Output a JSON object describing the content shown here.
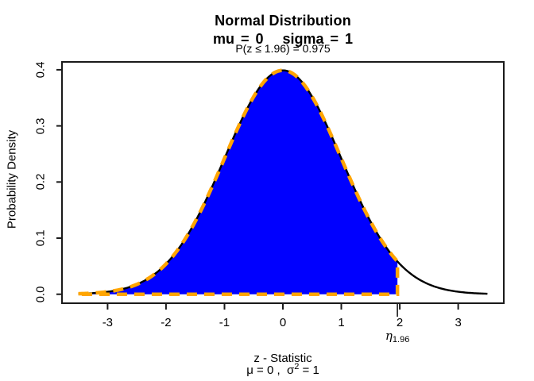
{
  "chart_data": {
    "type": "area",
    "title": "Normal Distribution",
    "subtitle": "mu = 0   sigma = 1",
    "annotation": "P(z ≤ 1.96) = 0.975",
    "xlabel": "z - Statistic",
    "xlabel2": {
      "pre": "μ = 0 ,  σ",
      "sup": "2",
      "post": " = 1"
    },
    "ylabel": "Probability Density",
    "x_ticks": [
      "-3",
      "-2",
      "-1",
      "0",
      "1",
      "2",
      "3"
    ],
    "y_ticks": [
      "0.0",
      "0.1",
      "0.2",
      "0.3",
      "0.4"
    ],
    "xlim": [
      -3.78,
      3.78
    ],
    "ylim": [
      -0.016,
      0.414
    ],
    "grid": false,
    "legend": null,
    "curve": {
      "distribution": "normal",
      "mu": 0,
      "sigma": 1,
      "from": -3.5,
      "to": 3.5,
      "color": "#000000",
      "line_width": 2.4
    },
    "shaded_region": {
      "from": -3.5,
      "to": 1.96,
      "probability": 0.975,
      "fill_color": "#0000FF",
      "border_color": "#FFA500",
      "border_style": "dashed"
    },
    "threshold_marker": {
      "value": 1.96,
      "symbol": "η",
      "subscript": "1.96"
    },
    "axis_color": "#1a1a1a",
    "series": [
      {
        "name": "standard_normal_pdf",
        "x": [
          -3.5,
          -3.0,
          -2.5,
          -2.0,
          -1.5,
          -1.0,
          -0.5,
          0.0,
          0.5,
          1.0,
          1.5,
          2.0,
          2.5,
          3.0,
          3.5
        ],
        "y": [
          0.0009,
          0.0044,
          0.0175,
          0.054,
          0.1295,
          0.242,
          0.3521,
          0.3989,
          0.3521,
          0.242,
          0.1295,
          0.054,
          0.0175,
          0.0044,
          0.0009
        ]
      }
    ]
  }
}
